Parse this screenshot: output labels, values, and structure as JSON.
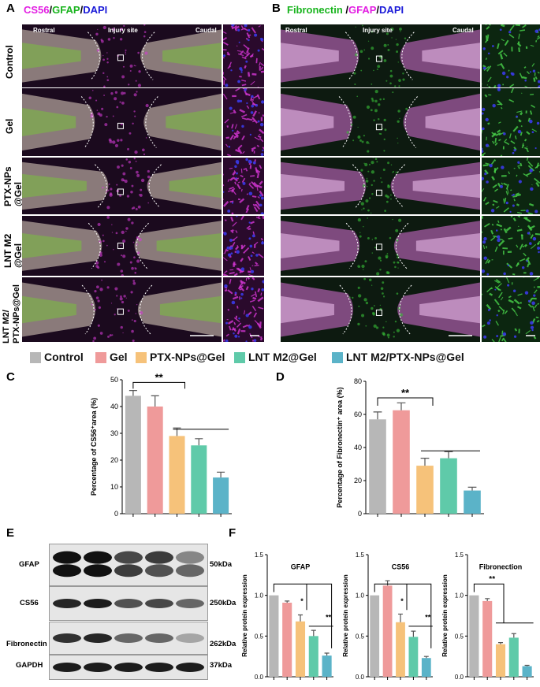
{
  "panel_a": {
    "letter": "A",
    "title_parts": [
      {
        "text": "CS56",
        "color": "#e21ee2"
      },
      {
        "text": "/",
        "color": "#000000"
      },
      {
        "text": "GFAP",
        "color": "#19b41e"
      },
      {
        "text": "/",
        "color": "#000000"
      },
      {
        "text": "DAPI",
        "color": "#1a1ad8"
      }
    ],
    "overlay": {
      "rostral": "Rostral",
      "injury": "Injury site",
      "caudal": "Caudal"
    }
  },
  "panel_b": {
    "letter": "B",
    "title_parts": [
      {
        "text": "Fibronectin",
        "color": "#19b41e"
      },
      {
        "text": " /",
        "color": "#000000"
      },
      {
        "text": "GFAP",
        "color": "#e21ee2"
      },
      {
        "text": "/",
        "color": "#000000"
      },
      {
        "text": "DAPI",
        "color": "#1a1ad8"
      }
    ],
    "overlay": {
      "rostral": "Rostral",
      "injury": "Injury site",
      "caudal": "Caudal"
    }
  },
  "row_labels": [
    "Control",
    "Gel",
    "PTX-NPs\n@Gel",
    "LNT M2\n@Gel",
    "LNT M2/\nPTX-NPs@Gel"
  ],
  "legend": [
    {
      "label": "Control",
      "color": "#b7b7b7"
    },
    {
      "label": "Gel",
      "color": "#ef9a9a"
    },
    {
      "label": "PTX-NPs@Gel",
      "color": "#f6c27a"
    },
    {
      "label": "LNT M2@Gel",
      "color": "#5fcaa9"
    },
    {
      "label": "LNT M2/PTX-NPs@Gel",
      "color": "#5bb3c8"
    }
  ],
  "panel_c": {
    "letter": "C"
  },
  "panel_d": {
    "letter": "D"
  },
  "panel_e": {
    "letter": "E",
    "blots": [
      {
        "name": "GFAP",
        "kda": "50kDa"
      },
      {
        "name": "CS56",
        "kda": "250kDa"
      },
      {
        "name": "Fibronectin",
        "kda": "262kDa"
      },
      {
        "name": "GAPDH",
        "kda": "37kDa"
      }
    ]
  },
  "panel_f": {
    "letter": "F"
  },
  "chart_data": [
    {
      "id": "C",
      "type": "bar",
      "ylabel": "Percentage of CS56⁺area (%)",
      "ylim": [
        0,
        50
      ],
      "yticks": [
        "0",
        "10",
        "20",
        "30",
        "40",
        "50"
      ],
      "categories": [
        "Control",
        "Gel",
        "PTX-NPs@Gel",
        "LNT M2@Gel",
        "LNT M2/PTX-NPs@Gel"
      ],
      "values": [
        44,
        40,
        29,
        25.5,
        13.5
      ],
      "errors": [
        2,
        4,
        3,
        2.5,
        2
      ],
      "significance": "**"
    },
    {
      "id": "D",
      "type": "bar",
      "ylabel": "Percentage of Fibronectin⁺ area (%)",
      "ylim": [
        0,
        80
      ],
      "yticks": [
        "0",
        "20",
        "40",
        "60",
        "80"
      ],
      "categories": [
        "Control",
        "Gel",
        "PTX-NPs@Gel",
        "LNT M2@Gel",
        "LNT M2/PTX-NPs@Gel"
      ],
      "values": [
        57,
        62.5,
        29,
        33.5,
        14
      ],
      "errors": [
        4.5,
        4.5,
        4.5,
        4,
        2
      ],
      "significance": "**"
    },
    {
      "id": "F-GFAP",
      "type": "bar",
      "title": "GFAP",
      "ylabel": "Relative protein expression",
      "ylim": [
        0,
        1.5
      ],
      "yticks": [
        "0.0",
        "0.5",
        "1.0",
        "1.5"
      ],
      "categories": [
        "Control",
        "Gel",
        "PTX-NPs@Gel",
        "LNT M2@Gel",
        "LNT M2/PTX-NPs@Gel"
      ],
      "values": [
        1.0,
        0.91,
        0.68,
        0.5,
        0.26
      ],
      "errors": [
        0,
        0.02,
        0.08,
        0.07,
        0.03
      ],
      "significance": [
        "*",
        "**"
      ]
    },
    {
      "id": "F-CS56",
      "type": "bar",
      "title": "CS56",
      "ylabel": "Relative protein expression",
      "ylim": [
        0,
        1.5
      ],
      "yticks": [
        "0.0",
        "0.5",
        "1.0",
        "1.5"
      ],
      "categories": [
        "Control",
        "Gel",
        "PTX-NPs@Gel",
        "LNT M2@Gel",
        "LNT M2/PTX-NPs@Gel"
      ],
      "values": [
        1.0,
        1.12,
        0.67,
        0.49,
        0.23
      ],
      "errors": [
        0,
        0.06,
        0.1,
        0.07,
        0.02
      ],
      "significance": [
        "*",
        "**"
      ]
    },
    {
      "id": "F-Fibronection",
      "type": "bar",
      "title": "Fibronection",
      "ylabel": "Relative protein expression",
      "ylim": [
        0,
        1.5
      ],
      "yticks": [
        "0.0",
        "0.5",
        "1.0",
        "1.5"
      ],
      "categories": [
        "Control",
        "Gel",
        "PTX-NPs@Gel",
        "LNT M2@Gel",
        "LNT M2/PTX-NPs@Gel"
      ],
      "values": [
        1.0,
        0.93,
        0.4,
        0.48,
        0.13
      ],
      "errors": [
        0,
        0.03,
        0.02,
        0.05,
        0.01
      ],
      "significance": [
        "**"
      ]
    }
  ]
}
